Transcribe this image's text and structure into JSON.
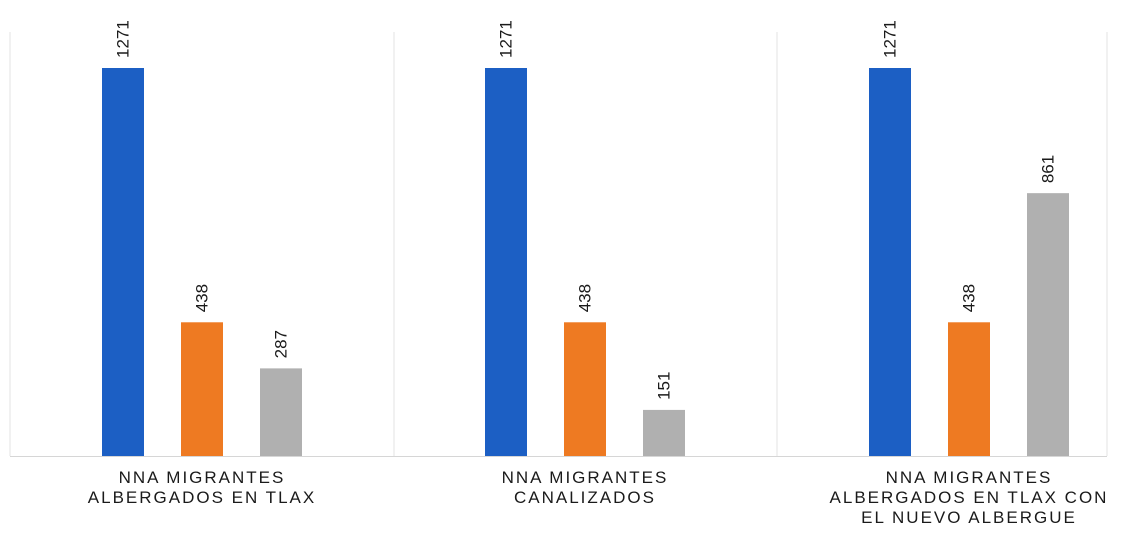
{
  "chart_data": {
    "type": "bar",
    "categories": [
      [
        "NNA MIGRANTES",
        "ALBERGADOS EN TLAX"
      ],
      [
        "NNA MIGRANTES",
        "CANALIZADOS"
      ],
      [
        "NNA MIGRANTES",
        "ALBERGADOS EN TLAX CON",
        "EL NUEVO ALBERGUE"
      ]
    ],
    "series": [
      {
        "values": [
          1271,
          1271,
          1271
        ],
        "color": "#1c5fc4"
      },
      {
        "values": [
          438,
          438,
          438
        ],
        "color": "#ee7a22"
      },
      {
        "values": [
          287,
          151,
          861
        ],
        "color": "#b0b0b0"
      }
    ],
    "ylim": [
      0,
      1271
    ],
    "grid": false,
    "legend": "none",
    "value_labels": "rotated above bars"
  }
}
